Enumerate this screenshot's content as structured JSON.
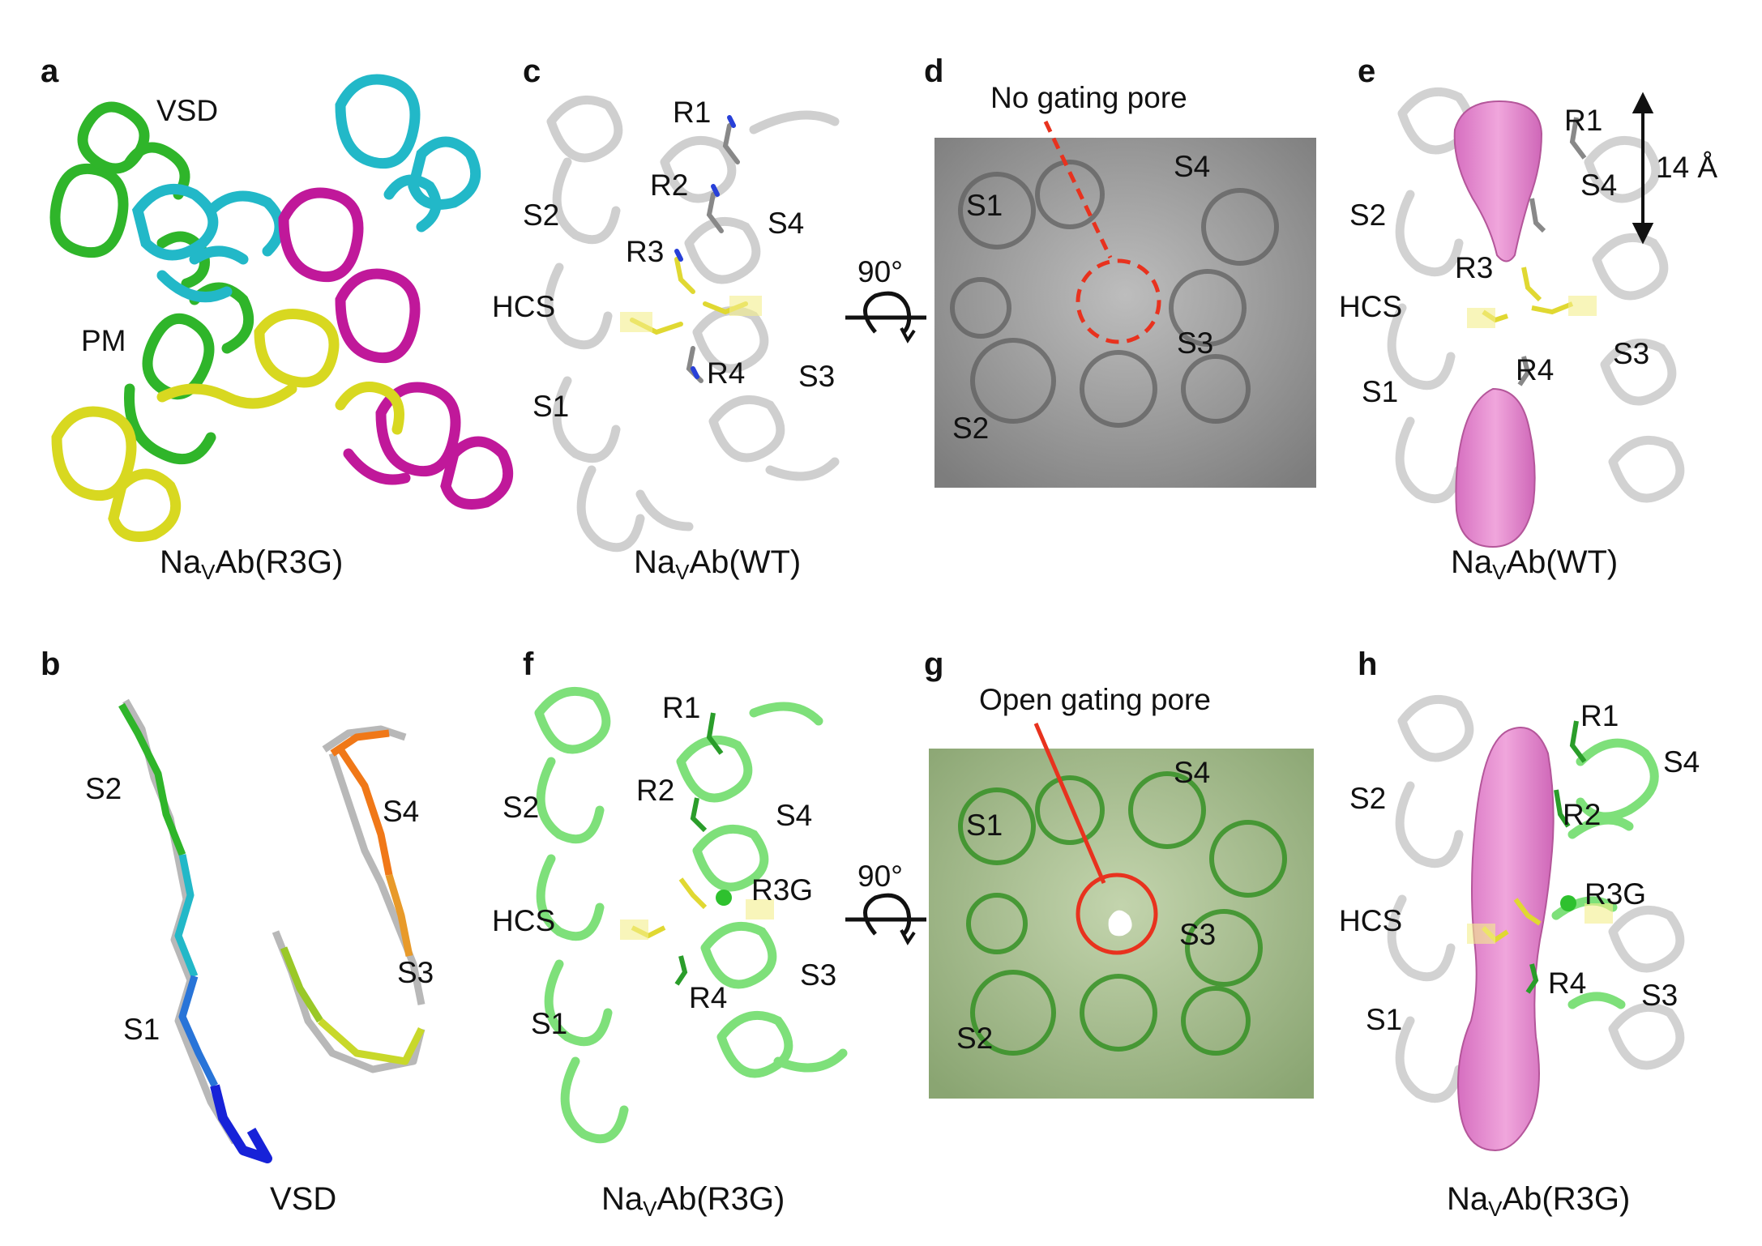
{
  "panels": {
    "a": {
      "letter": "a",
      "labels": {
        "vsd": "VSD",
        "pm": "PM"
      },
      "caption": {
        "pre": "Na",
        "sub": "V",
        "post": "Ab(R3G)"
      }
    },
    "b": {
      "letter": "b",
      "labels": {
        "s1": "S1",
        "s2": "S2",
        "s3": "S3",
        "s4": "S4"
      },
      "caption": "VSD"
    },
    "c": {
      "letter": "c",
      "labels": {
        "r1": "R1",
        "r2": "R2",
        "r3": "R3",
        "r4": "R4",
        "s1": "S1",
        "s2": "S2",
        "s3": "S3",
        "s4": "S4",
        "hcs": "HCS"
      },
      "caption": {
        "pre": "Na",
        "sub": "V",
        "post": "Ab(WT)"
      }
    },
    "d": {
      "letter": "d",
      "annotation": "No gating pore",
      "labels": {
        "s1": "S1",
        "s2": "S2",
        "s3": "S3",
        "s4": "S4"
      }
    },
    "e": {
      "letter": "e",
      "labels": {
        "r1": "R1",
        "r3": "R3",
        "r4": "R4",
        "s1": "S1",
        "s2": "S2",
        "s3": "S3",
        "s4": "S4",
        "hcs": "HCS"
      },
      "distance": "14 Å",
      "caption": {
        "pre": "Na",
        "sub": "V",
        "post": "Ab(WT)"
      }
    },
    "f": {
      "letter": "f",
      "labels": {
        "r1": "R1",
        "r2": "R2",
        "r3g": "R3G",
        "r4": "R4",
        "s1": "S1",
        "s2": "S2",
        "s3": "S3",
        "s4": "S4",
        "hcs": "HCS"
      },
      "caption": {
        "pre": "Na",
        "sub": "V",
        "post": "Ab(R3G)"
      }
    },
    "g": {
      "letter": "g",
      "annotation": "Open gating pore",
      "labels": {
        "s1": "S1",
        "s2": "S2",
        "s3": "S3",
        "s4": "S4"
      }
    },
    "h": {
      "letter": "h",
      "labels": {
        "r1": "R1",
        "r2": "R2",
        "r3g": "R3G",
        "r4": "R4",
        "s1": "S1",
        "s2": "S2",
        "s3": "S3",
        "s4": "S4",
        "hcs": "HCS"
      },
      "caption": {
        "pre": "Na",
        "sub": "V",
        "post": "Ab(R3G)"
      }
    }
  },
  "rotation": {
    "label": "90°"
  },
  "colors": {
    "chain_green": "#2fb52a",
    "chain_cyan": "#22b8c8",
    "chain_magenta": "#c0189a",
    "chain_yellow": "#d8d820",
    "wt_grey": "#c8c8c8",
    "mutant_green": "#7ee07a",
    "pore_pink": "#e38ccf",
    "annotation_red": "#e8321e",
    "surface_grey": "#8f8f8f",
    "surface_green": "#9ab482"
  }
}
